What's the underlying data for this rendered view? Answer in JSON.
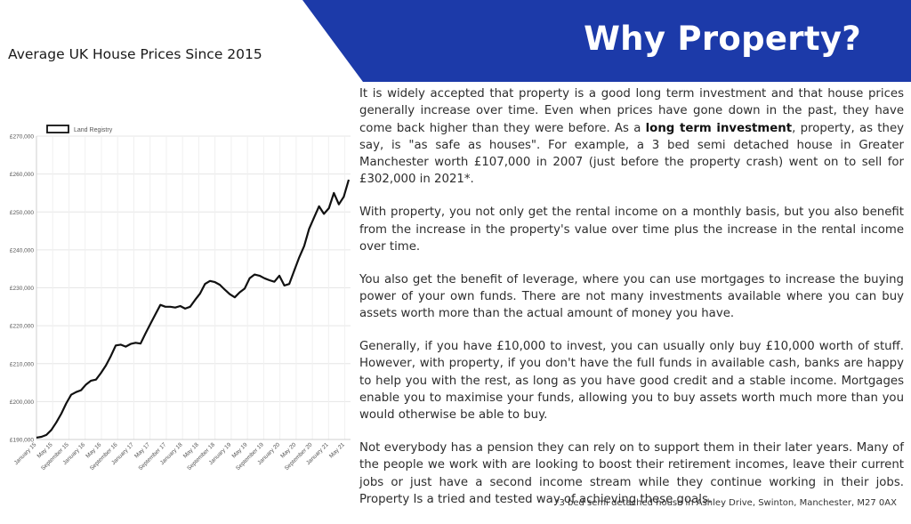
{
  "banner": {
    "title": "Why Property?",
    "color": "#1c3aa9"
  },
  "chart_heading": "Average UK House Prices Since 2015",
  "chart_data": {
    "type": "line",
    "legend": [
      "Land Registry"
    ],
    "legend_placement": "top-left",
    "grid": true,
    "ylim": [
      190000,
      270000
    ],
    "y_ticks": [
      "£190,000",
      "£200,000",
      "£210,000",
      "£220,000",
      "£230,000",
      "£240,000",
      "£250,000",
      "£260,000",
      "£270,000"
    ],
    "x_ticks": [
      "January 15",
      "May 15",
      "September 15",
      "January 16",
      "May 16",
      "September 16",
      "January 17",
      "May 17",
      "September 17",
      "January 18",
      "May 18",
      "September 18",
      "January 19",
      "May 19",
      "September 19",
      "January 20",
      "May 20",
      "September 20",
      "January 21",
      "May 21"
    ],
    "series": [
      {
        "name": "Land Registry",
        "color": "#111111",
        "values": [
          190500,
          190700,
          191200,
          192500,
          194500,
          196800,
          199500,
          201800,
          202500,
          203000,
          204500,
          205500,
          205800,
          207500,
          209500,
          212000,
          214800,
          215000,
          214500,
          215200,
          215500,
          215300,
          218000,
          220500,
          223000,
          225500,
          225000,
          225000,
          224800,
          225200,
          224500,
          225000,
          226800,
          228500,
          231000,
          231800,
          231500,
          230800,
          229500,
          228300,
          227500,
          228800,
          229800,
          232500,
          233500,
          233200,
          232500,
          232000,
          231600,
          233200,
          230600,
          231000,
          234500,
          238000,
          241000,
          245500,
          248500,
          251500,
          249500,
          251000,
          255000,
          252000,
          254000,
          258500
        ]
      }
    ]
  },
  "paragraphs": [
    {
      "before": "It is widely accepted that property is a good long term investment and that house prices generally increase over time. Even when prices have gone down in the past, they have come back higher than they were before. As a ",
      "bold": "long term investment",
      "after": ", property, as they say, is \"as safe as houses\". For example, a 3 bed semi detached house in Greater Manchester worth £107,000 in 2007 (just before the property crash) went on to sell for £302,000 in 2021*."
    },
    {
      "text": "With property, you not only get the rental income on a monthly basis, but you also benefit from the increase in the property's value over time plus the increase in the rental income over time."
    },
    {
      "text": "You also get the benefit of leverage, where you can use mortgages to increase the buying power of your own funds. There are not many investments available where you can buy assets worth more than the actual amount of money you have."
    },
    {
      "text": "Generally, if you have £10,000 to invest, you can usually only buy £10,000 worth of stuff. However, with property, if you don't have the full funds in available cash, banks are happy to help you with the rest, as long as you have good credit and a stable income. Mortgages enable you to maximise your funds, allowing you to buy assets worth much more than you would otherwise be able to buy."
    },
    {
      "text": "Not everybody has a pension they can rely on to support them in their later years. Many of the people we work with are looking to boost their retirement incomes, leave their current jobs or just have a second income stream while they continue working in their jobs. Property Is a tried and tested way of achieving these goals."
    }
  ],
  "footnote": "*3 bed semi detached house in Ashley Drive, Swinton, Manchester, M27 0AX"
}
